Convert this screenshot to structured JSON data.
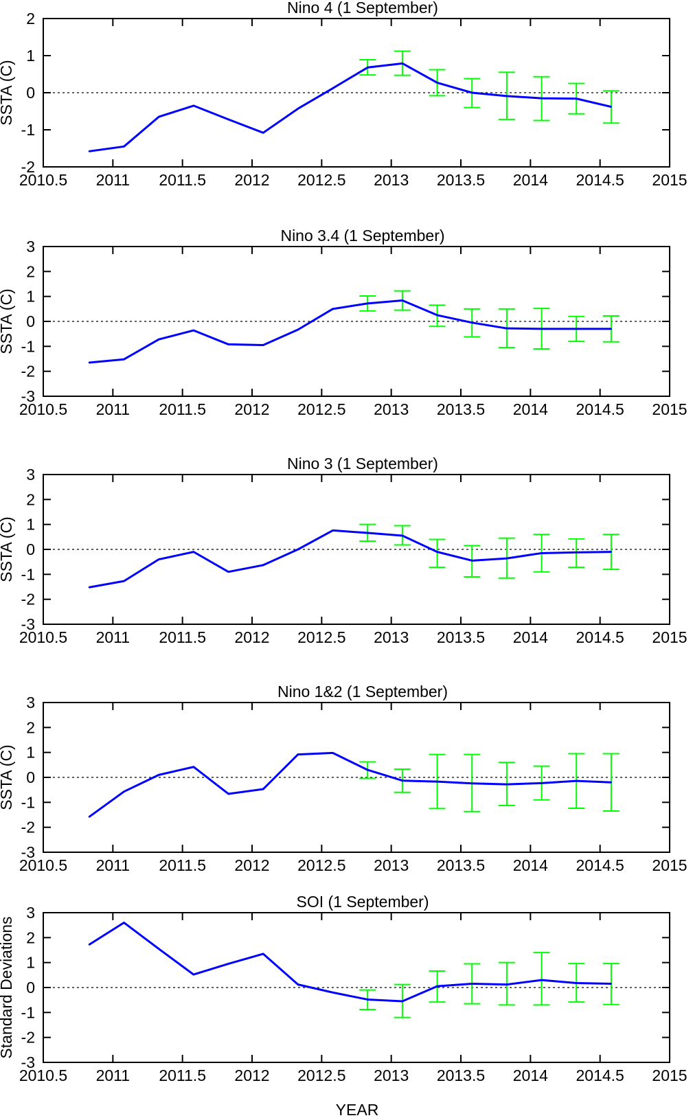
{
  "figure": {
    "xlabel": "YEAR",
    "colors": {
      "line": "#0000ff",
      "errorbar": "#00ff00",
      "axes": "#000000",
      "zero_line": "#000000"
    }
  },
  "chart_data": [
    {
      "type": "line",
      "title": "Nino 4 (1 September)",
      "xlabel": "",
      "ylabel": "SSTA (C)",
      "xlim": [
        2010.5,
        2015
      ],
      "ylim": [
        -2,
        2
      ],
      "xticks": [
        "2010.5",
        "2011",
        "2011.5",
        "2012",
        "2012.5",
        "2013",
        "2013.5",
        "2014",
        "2014.5",
        "2015"
      ],
      "yticks": [
        "-2",
        "-1",
        "0",
        "1",
        "2"
      ],
      "zero_line": true,
      "series": [
        {
          "x": [
            2010.83,
            2011.08,
            2011.33,
            2011.58,
            2011.83,
            2012.08,
            2012.33,
            2012.58,
            2012.83,
            2013.08,
            2013.33,
            2013.58,
            2013.83,
            2014.08,
            2014.33,
            2014.58
          ],
          "y": [
            -1.58,
            -1.45,
            -0.65,
            -0.35,
            -0.72,
            -1.08,
            -0.43,
            0.12,
            0.68,
            0.79,
            0.27,
            0.0,
            -0.09,
            -0.15,
            -0.16,
            -0.38
          ],
          "err_low": [
            null,
            null,
            null,
            null,
            null,
            null,
            null,
            null,
            0.48,
            0.47,
            -0.08,
            -0.4,
            -0.72,
            -0.75,
            -0.57,
            -0.82
          ],
          "err_high": [
            null,
            null,
            null,
            null,
            null,
            null,
            null,
            null,
            0.89,
            1.12,
            0.62,
            0.38,
            0.55,
            0.43,
            0.25,
            0.05
          ]
        }
      ]
    },
    {
      "type": "line",
      "title": "Nino 3.4 (1 September)",
      "xlabel": "",
      "ylabel": "SSTA (C)",
      "xlim": [
        2010.5,
        2015
      ],
      "ylim": [
        -3,
        3
      ],
      "xticks": [
        "2010.5",
        "2011",
        "2011.5",
        "2012",
        "2012.5",
        "2013",
        "2013.5",
        "2014",
        "2014.5",
        "2015"
      ],
      "yticks": [
        "-3",
        "-2",
        "-1",
        "0",
        "1",
        "2",
        "3"
      ],
      "zero_line": true,
      "series": [
        {
          "x": [
            2010.83,
            2011.08,
            2011.33,
            2011.58,
            2011.83,
            2012.08,
            2012.33,
            2012.58,
            2012.83,
            2013.08,
            2013.33,
            2013.58,
            2013.83,
            2014.08,
            2014.33,
            2014.58
          ],
          "y": [
            -1.65,
            -1.52,
            -0.72,
            -0.36,
            -0.92,
            -0.95,
            -0.33,
            0.5,
            0.72,
            0.84,
            0.25,
            -0.05,
            -0.28,
            -0.3,
            -0.3,
            -0.3
          ],
          "err_low": [
            null,
            null,
            null,
            null,
            null,
            null,
            null,
            null,
            0.42,
            0.45,
            -0.2,
            -0.62,
            -1.05,
            -1.1,
            -0.8,
            -0.82
          ],
          "err_high": [
            null,
            null,
            null,
            null,
            null,
            null,
            null,
            null,
            1.02,
            1.22,
            0.65,
            0.5,
            0.5,
            0.52,
            0.2,
            0.22
          ]
        }
      ]
    },
    {
      "type": "line",
      "title": "Nino 3 (1 September)",
      "xlabel": "",
      "ylabel": "SSTA (C)",
      "xlim": [
        2010.5,
        2015
      ],
      "ylim": [
        -3,
        3
      ],
      "xticks": [
        "2010.5",
        "2011",
        "2011.5",
        "2012",
        "2012.5",
        "2013",
        "2013.5",
        "2014",
        "2014.5",
        "2015"
      ],
      "yticks": [
        "-3",
        "-2",
        "-1",
        "0",
        "1",
        "2",
        "3"
      ],
      "zero_line": true,
      "series": [
        {
          "x": [
            2010.83,
            2011.08,
            2011.33,
            2011.58,
            2011.83,
            2012.08,
            2012.33,
            2012.58,
            2012.83,
            2013.08,
            2013.33,
            2013.58,
            2013.83,
            2014.08,
            2014.33,
            2014.58
          ],
          "y": [
            -1.52,
            -1.27,
            -0.4,
            -0.1,
            -0.9,
            -0.63,
            0.0,
            0.76,
            0.66,
            0.55,
            -0.1,
            -0.45,
            -0.36,
            -0.15,
            -0.12,
            -0.1
          ],
          "err_low": [
            null,
            null,
            null,
            null,
            null,
            null,
            null,
            null,
            0.33,
            0.18,
            -0.72,
            -1.1,
            -1.15,
            -0.9,
            -0.72,
            -0.8
          ],
          "err_high": [
            null,
            null,
            null,
            null,
            null,
            null,
            null,
            null,
            1.0,
            0.95,
            0.4,
            0.15,
            0.45,
            0.6,
            0.42,
            0.6
          ]
        }
      ]
    },
    {
      "type": "line",
      "title": "Nino 1&2 (1 September)",
      "xlabel": "",
      "ylabel": "SSTA (C)",
      "xlim": [
        2010.5,
        2015
      ],
      "ylim": [
        -3,
        3
      ],
      "xticks": [
        "2010.5",
        "2011",
        "2011.5",
        "2012",
        "2012.5",
        "2013",
        "2013.5",
        "2014",
        "2014.5",
        "2015"
      ],
      "yticks": [
        "-3",
        "-2",
        "-1",
        "0",
        "1",
        "2",
        "3"
      ],
      "zero_line": true,
      "series": [
        {
          "x": [
            2010.83,
            2011.08,
            2011.33,
            2011.58,
            2011.83,
            2012.08,
            2012.33,
            2012.58,
            2012.83,
            2013.08,
            2013.33,
            2013.58,
            2013.83,
            2014.08,
            2014.33,
            2014.58
          ],
          "y": [
            -1.58,
            -0.57,
            0.1,
            0.42,
            -0.66,
            -0.47,
            0.92,
            0.98,
            0.3,
            -0.13,
            -0.17,
            -0.24,
            -0.28,
            -0.23,
            -0.14,
            -0.2
          ],
          "err_low": [
            null,
            null,
            null,
            null,
            null,
            null,
            null,
            null,
            -0.04,
            -0.6,
            -1.25,
            -1.37,
            -1.13,
            -0.9,
            -1.24,
            -1.35
          ],
          "err_high": [
            null,
            null,
            null,
            null,
            null,
            null,
            null,
            null,
            0.62,
            0.33,
            0.92,
            0.92,
            0.6,
            0.45,
            0.95,
            0.95
          ]
        }
      ]
    },
    {
      "type": "line",
      "title": "SOI (1 September)",
      "xlabel": "YEAR",
      "ylabel": "Standard Deviations",
      "xlim": [
        2010.5,
        2015
      ],
      "ylim": [
        -3,
        3
      ],
      "xticks": [
        "2010.5",
        "2011",
        "2011.5",
        "2012",
        "2012.5",
        "2013",
        "2013.5",
        "2014",
        "2014.5",
        "2015"
      ],
      "yticks": [
        "-3",
        "-2",
        "-1",
        "0",
        "1",
        "2",
        "3"
      ],
      "zero_line": true,
      "series": [
        {
          "x": [
            2010.83,
            2011.08,
            2011.33,
            2011.58,
            2011.83,
            2012.08,
            2012.33,
            2012.58,
            2012.83,
            2013.08,
            2013.33,
            2013.58,
            2013.83,
            2014.08,
            2014.33,
            2014.58
          ],
          "y": [
            1.72,
            2.6,
            1.55,
            0.52,
            0.95,
            1.35,
            0.12,
            -0.2,
            -0.48,
            -0.55,
            0.05,
            0.15,
            0.12,
            0.3,
            0.18,
            0.15
          ],
          "err_low": [
            null,
            null,
            null,
            null,
            null,
            null,
            null,
            null,
            -0.88,
            -1.2,
            -0.58,
            -0.65,
            -0.7,
            -0.7,
            -0.58,
            -0.68
          ],
          "err_high": [
            null,
            null,
            null,
            null,
            null,
            null,
            null,
            null,
            -0.1,
            0.12,
            0.66,
            0.95,
            1.0,
            1.4,
            0.96,
            0.96
          ]
        }
      ]
    }
  ]
}
